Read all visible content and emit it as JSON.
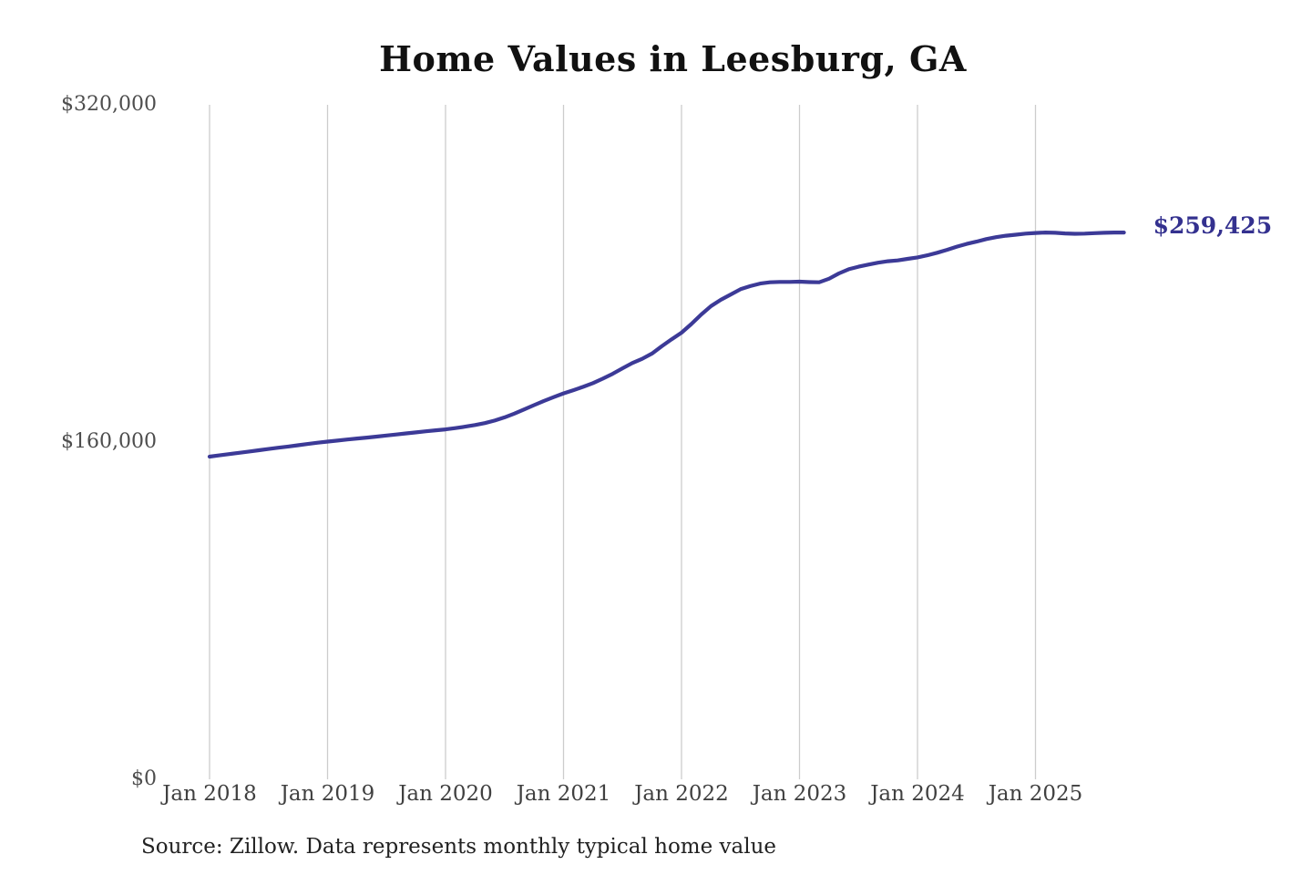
{
  "chart_data": {
    "type": "line",
    "title": "Home Values in Leesburg, GA",
    "xlabel": "",
    "ylabel": "",
    "ylim": [
      0,
      320000
    ],
    "grid": "vertical-only",
    "series": [
      {
        "name": "Typical home value",
        "start_month": "Jan 2018",
        "cadence": "monthly",
        "values": [
          153100,
          153700,
          154300,
          154900,
          155500,
          156100,
          156700,
          157300,
          157900,
          158500,
          159100,
          159700,
          160200,
          160700,
          161200,
          161700,
          162100,
          162600,
          163100,
          163600,
          164100,
          164600,
          165100,
          165600,
          166000,
          166600,
          167300,
          168100,
          169000,
          170200,
          171700,
          173500,
          175500,
          177500,
          179500,
          181300,
          183100,
          184600,
          186200,
          188000,
          190100,
          192400,
          195000,
          197500,
          199500,
          202000,
          205500,
          208800,
          211900,
          216000,
          220500,
          224500,
          227500,
          230000,
          232500,
          234000,
          235200,
          235800,
          236000,
          236000,
          236100,
          235900,
          235800,
          237500,
          240000,
          242000,
          243200,
          244200,
          245100,
          245800,
          246200,
          246900,
          247600,
          248600,
          249800,
          251200,
          252700,
          254000,
          255100,
          256300,
          257200,
          257900,
          258400,
          258900,
          259200,
          259400,
          259300,
          259000,
          258800,
          258900,
          259100,
          259300,
          259400,
          259425
        ]
      }
    ],
    "xticks": [
      "Jan 2018",
      "Jan 2019",
      "Jan 2020",
      "Jan 2021",
      "Jan 2022",
      "Jan 2023",
      "Jan 2024",
      "Jan 2025"
    ],
    "xtick_month_step": 12,
    "yticks": [
      {
        "label": "$0",
        "value": 0
      },
      {
        "label": "$160,000",
        "value": 160000
      },
      {
        "label": "$320,000",
        "value": 320000
      }
    ],
    "end_label": "$259,425",
    "colors": {
      "line": "#3c3a97",
      "end_label": "#34318f",
      "grid": "#cccccc"
    }
  },
  "source_note": "Source: Zillow. Data represents monthly typical home value"
}
